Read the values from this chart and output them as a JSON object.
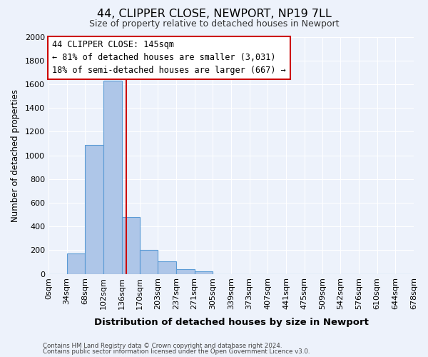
{
  "title": "44, CLIPPER CLOSE, NEWPORT, NP19 7LL",
  "subtitle": "Size of property relative to detached houses in Newport",
  "xlabel": "Distribution of detached houses by size in Newport",
  "ylabel": "Number of detached properties",
  "bin_edges": [
    0,
    34,
    68,
    102,
    136,
    170,
    203,
    237,
    271,
    305,
    339,
    373,
    407,
    441,
    475,
    509,
    542,
    576,
    610,
    644,
    678
  ],
  "bin_labels": [
    "0sqm",
    "34sqm",
    "68sqm",
    "102sqm",
    "136sqm",
    "170sqm",
    "203sqm",
    "237sqm",
    "271sqm",
    "305sqm",
    "339sqm",
    "373sqm",
    "407sqm",
    "441sqm",
    "475sqm",
    "509sqm",
    "542sqm",
    "576sqm",
    "610sqm",
    "644sqm",
    "678sqm"
  ],
  "counts": [
    0,
    170,
    1090,
    1630,
    480,
    200,
    105,
    40,
    20,
    0,
    0,
    0,
    0,
    0,
    0,
    0,
    0,
    0,
    0,
    0
  ],
  "bar_color": "#aec6e8",
  "bar_edge_color": "#5b9bd5",
  "property_line_x": 145,
  "property_line_color": "#cc0000",
  "ylim": [
    0,
    2000
  ],
  "yticks": [
    0,
    200,
    400,
    600,
    800,
    1000,
    1200,
    1400,
    1600,
    1800,
    2000
  ],
  "annotation_title": "44 CLIPPER CLOSE: 145sqm",
  "annotation_line1": "← 81% of detached houses are smaller (3,031)",
  "annotation_line2": "18% of semi-detached houses are larger (667) →",
  "annotation_box_color": "#ffffff",
  "annotation_box_edge": "#cc0000",
  "footer_line1": "Contains HM Land Registry data © Crown copyright and database right 2024.",
  "footer_line2": "Contains public sector information licensed under the Open Government Licence v3.0.",
  "background_color": "#edf2fb",
  "grid_color": "#ffffff"
}
